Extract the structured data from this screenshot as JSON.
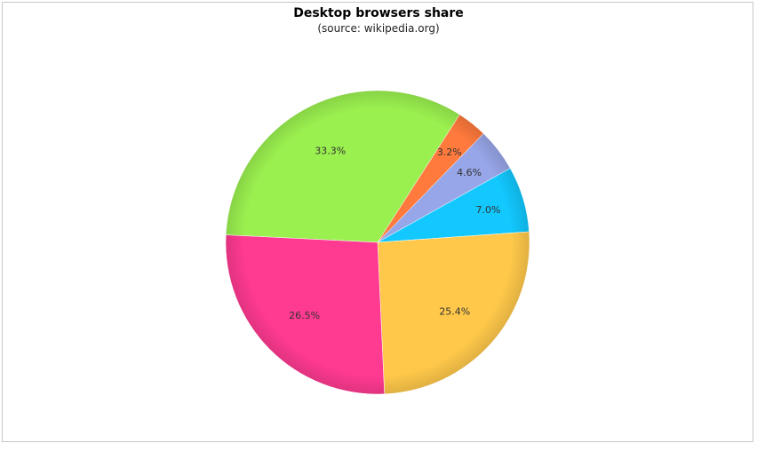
{
  "chart_data": {
    "type": "pie",
    "title": "Desktop browsers share",
    "subtitle": "(source: wikipedia.org)",
    "slices": [
      {
        "value": 33.3,
        "label": "33.3%",
        "color": "#9af04f"
      },
      {
        "value": 3.2,
        "label": "3.2%",
        "color": "#ff7a3c"
      },
      {
        "value": 4.6,
        "label": "4.6%",
        "color": "#97a6e8"
      },
      {
        "value": 7.0,
        "label": "7.0%",
        "color": "#12c8ff"
      },
      {
        "value": 25.4,
        "label": "25.4%",
        "color": "#ffc84a"
      },
      {
        "value": 26.5,
        "label": "26.5%",
        "color": "#ff3a91"
      }
    ]
  }
}
